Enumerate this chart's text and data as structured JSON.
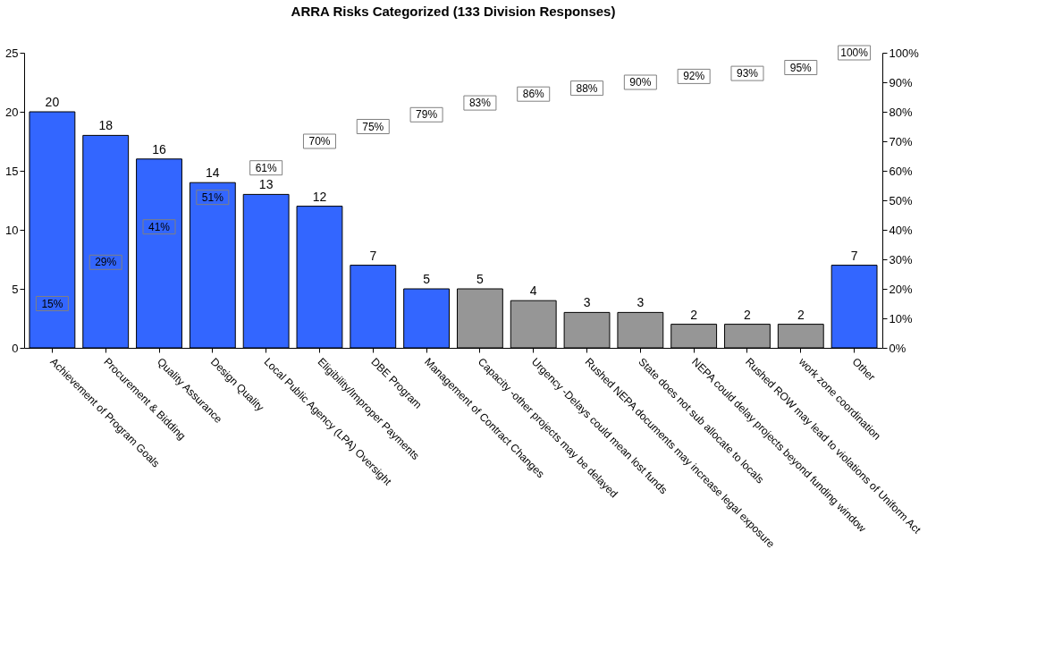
{
  "chart_data": {
    "type": "bar",
    "title": "ARRA Risks Categorized (133 Division Responses)",
    "categories": [
      "Achievement of Program Goals",
      "Procurement & Bidding",
      "Quality Assurance",
      "Design Quality",
      "Local Public Agency (LPA) Oversight",
      "Eligibility/Improper Payments",
      "DBE Program",
      "Management of Contract Changes",
      "Capacity -other projects may be delayed",
      "Urgency -Delays could mean lost funds",
      "Rushed NEPA documents may increase legal exposure",
      "State does not sub allocate to locals",
      "NEPA could delay projects beyond funding window",
      "Rushed ROW may lead to violations of Uniform Act",
      "work zone coordination",
      "Other"
    ],
    "series": [
      {
        "values": [
          20,
          18,
          16,
          14,
          13,
          12,
          7,
          5,
          5,
          4,
          3,
          3,
          2,
          2,
          2,
          7
        ],
        "colors": [
          "#3366ff",
          "#3366ff",
          "#3366ff",
          "#3366ff",
          "#3366ff",
          "#3366ff",
          "#3366ff",
          "#3366ff",
          "#969696",
          "#969696",
          "#969696",
          "#969696",
          "#969696",
          "#969696",
          "#969696",
          "#3366ff"
        ]
      },
      {
        "type": "scatter",
        "axis": "y2",
        "marker": "square",
        "color": "#808080",
        "values": [
          15,
          29,
          41,
          51,
          61,
          70,
          75,
          79,
          83,
          86,
          88,
          90,
          92,
          93,
          95,
          100
        ],
        "value_labels": [
          "15%",
          "29%",
          "41%",
          "51%",
          "61%",
          "70%",
          "75%",
          "79%",
          "83%",
          "86%",
          "88%",
          "90%",
          "92%",
          "93%",
          "95%",
          "100%"
        ]
      }
    ],
    "data_labels": true,
    "ylim": [
      0,
      25
    ],
    "yticks": [
      0,
      5,
      10,
      15,
      20,
      25
    ],
    "y2lim": [
      0,
      100
    ],
    "y2ticks": [
      {
        "value": 0,
        "label": "0%"
      },
      {
        "value": 10,
        "label": "10%"
      },
      {
        "value": 20,
        "label": "20%"
      },
      {
        "value": 30,
        "label": "30%"
      },
      {
        "value": 40,
        "label": "40%"
      },
      {
        "value": 50,
        "label": "50%"
      },
      {
        "value": 60,
        "label": "60%"
      },
      {
        "value": 70,
        "label": "70%"
      },
      {
        "value": 80,
        "label": "80%"
      },
      {
        "value": 90,
        "label": "90%"
      },
      {
        "value": 100,
        "label": "100%"
      }
    ],
    "grid": false,
    "legend": false
  }
}
